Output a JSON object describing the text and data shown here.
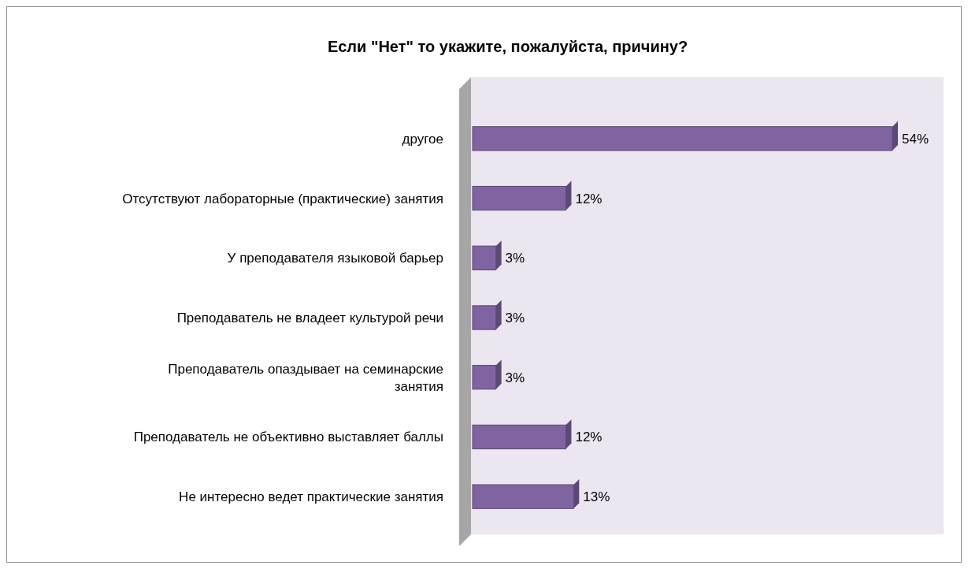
{
  "chart_data": {
    "type": "bar",
    "orientation": "horizontal",
    "title": "Если \"Нет\" то укажите, пожалуйста, причину?",
    "categories": [
      "другое",
      "Отсутствуют лабораторные (практические) занятия",
      "У преподавателя языковой барьер",
      "Преподаватель не владеет культурой речи",
      "Преподаватель опаздывает на семинарские занятия",
      "Преподаватель не объективно выставляет баллы",
      "Не интересно ведет практические занятия"
    ],
    "values": [
      54,
      12,
      3,
      3,
      3,
      12,
      13
    ],
    "value_labels": [
      "54%",
      "12%",
      "3%",
      "3%",
      "3%",
      "12%",
      "13%"
    ],
    "color": "#8064a2"
  }
}
